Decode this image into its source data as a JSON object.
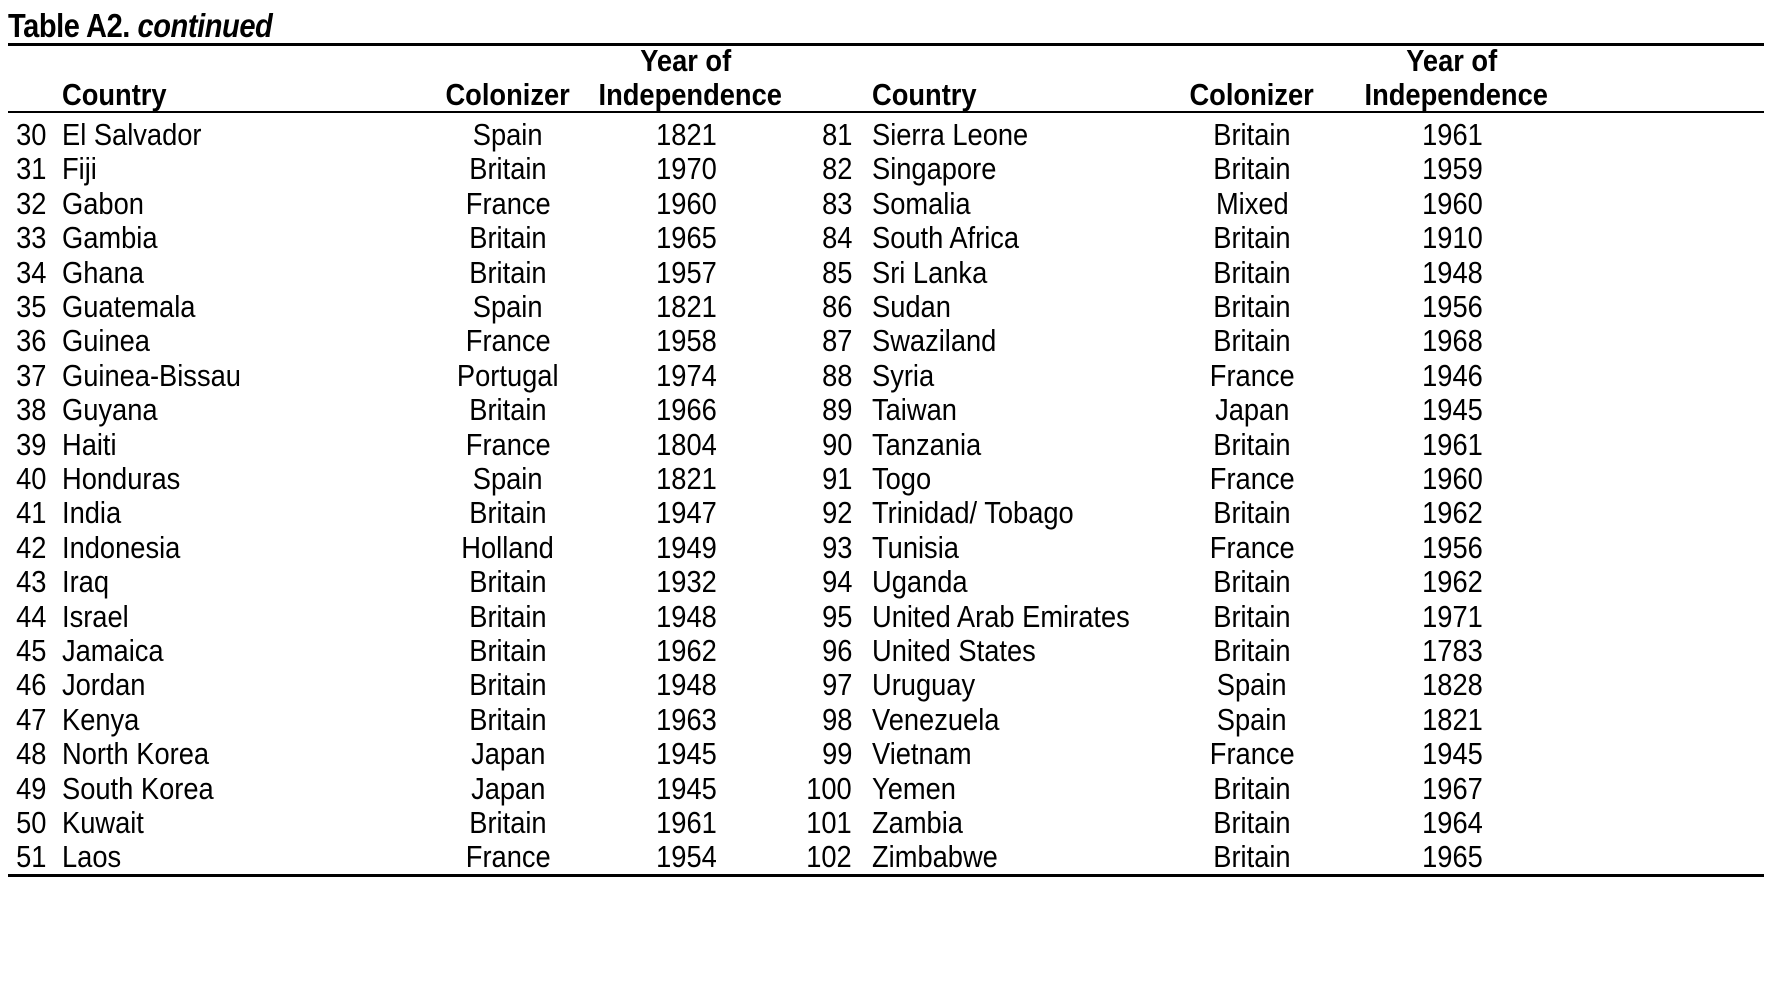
{
  "caption": {
    "label": "Table A2.",
    "continued": "continued"
  },
  "headers": {
    "country": "Country",
    "colonizer": "Colonizer",
    "year_line1": "Year of",
    "year_line2": "Independence"
  },
  "rows_left": [
    {
      "num": "30",
      "country": "El Salvador",
      "colonizer": "Spain",
      "year": "1821"
    },
    {
      "num": "31",
      "country": "Fiji",
      "colonizer": "Britain",
      "year": "1970"
    },
    {
      "num": "32",
      "country": "Gabon",
      "colonizer": "France",
      "year": "1960"
    },
    {
      "num": "33",
      "country": "Gambia",
      "colonizer": "Britain",
      "year": "1965"
    },
    {
      "num": "34",
      "country": "Ghana",
      "colonizer": "Britain",
      "year": "1957"
    },
    {
      "num": "35",
      "country": "Guatemala",
      "colonizer": "Spain",
      "year": "1821"
    },
    {
      "num": "36",
      "country": "Guinea",
      "colonizer": "France",
      "year": "1958"
    },
    {
      "num": "37",
      "country": "Guinea-Bissau",
      "colonizer": "Portugal",
      "year": "1974"
    },
    {
      "num": "38",
      "country": "Guyana",
      "colonizer": "Britain",
      "year": "1966"
    },
    {
      "num": "39",
      "country": "Haiti",
      "colonizer": "France",
      "year": "1804"
    },
    {
      "num": "40",
      "country": "Honduras",
      "colonizer": "Spain",
      "year": "1821"
    },
    {
      "num": "41",
      "country": "India",
      "colonizer": "Britain",
      "year": "1947"
    },
    {
      "num": "42",
      "country": "Indonesia",
      "colonizer": "Holland",
      "year": "1949"
    },
    {
      "num": "43",
      "country": "Iraq",
      "colonizer": "Britain",
      "year": "1932"
    },
    {
      "num": "44",
      "country": "Israel",
      "colonizer": "Britain",
      "year": "1948"
    },
    {
      "num": "45",
      "country": "Jamaica",
      "colonizer": "Britain",
      "year": "1962"
    },
    {
      "num": "46",
      "country": "Jordan",
      "colonizer": "Britain",
      "year": "1948"
    },
    {
      "num": "47",
      "country": "Kenya",
      "colonizer": "Britain",
      "year": "1963"
    },
    {
      "num": "48",
      "country": "North Korea",
      "colonizer": "Japan",
      "year": "1945"
    },
    {
      "num": "49",
      "country": "South Korea",
      "colonizer": "Japan",
      "year": "1945"
    },
    {
      "num": "50",
      "country": "Kuwait",
      "colonizer": "Britain",
      "year": "1961"
    },
    {
      "num": "51",
      "country": "Laos",
      "colonizer": "France",
      "year": "1954"
    }
  ],
  "rows_right": [
    {
      "num": "81",
      "country": "Sierra Leone",
      "colonizer": "Britain",
      "year": "1961"
    },
    {
      "num": "82",
      "country": "Singapore",
      "colonizer": "Britain",
      "year": "1959"
    },
    {
      "num": "83",
      "country": "Somalia",
      "colonizer": "Mixed",
      "year": "1960"
    },
    {
      "num": "84",
      "country": "South Africa",
      "colonizer": "Britain",
      "year": "1910"
    },
    {
      "num": "85",
      "country": "Sri Lanka",
      "colonizer": "Britain",
      "year": "1948"
    },
    {
      "num": "86",
      "country": "Sudan",
      "colonizer": "Britain",
      "year": "1956"
    },
    {
      "num": "87",
      "country": "Swaziland",
      "colonizer": "Britain",
      "year": "1968"
    },
    {
      "num": "88",
      "country": "Syria",
      "colonizer": "France",
      "year": "1946"
    },
    {
      "num": "89",
      "country": "Taiwan",
      "colonizer": "Japan",
      "year": "1945"
    },
    {
      "num": "90",
      "country": "Tanzania",
      "colonizer": "Britain",
      "year": "1961"
    },
    {
      "num": "91",
      "country": "Togo",
      "colonizer": "France",
      "year": "1960"
    },
    {
      "num": "92",
      "country": "Trinidad/ Tobago",
      "colonizer": "Britain",
      "year": "1962"
    },
    {
      "num": "93",
      "country": "Tunisia",
      "colonizer": "France",
      "year": "1956"
    },
    {
      "num": "94",
      "country": "Uganda",
      "colonizer": "Britain",
      "year": "1962"
    },
    {
      "num": "95",
      "country": "United Arab Emirates",
      "colonizer": "Britain",
      "year": "1971"
    },
    {
      "num": "96",
      "country": "United States",
      "colonizer": "Britain",
      "year": "1783"
    },
    {
      "num": "97",
      "country": "Uruguay",
      "colonizer": "Spain",
      "year": "1828"
    },
    {
      "num": "98",
      "country": "Venezuela",
      "colonizer": "Spain",
      "year": "1821"
    },
    {
      "num": "99",
      "country": "Vietnam",
      "colonizer": "France",
      "year": "1945"
    },
    {
      "num": "100",
      "country": "Yemen",
      "colonizer": "Britain",
      "year": "1967"
    },
    {
      "num": "101",
      "country": "Zambia",
      "colonizer": "Britain",
      "year": "1964"
    },
    {
      "num": "102",
      "country": "Zimbabwe",
      "colonizer": "Britain",
      "year": "1965"
    }
  ]
}
